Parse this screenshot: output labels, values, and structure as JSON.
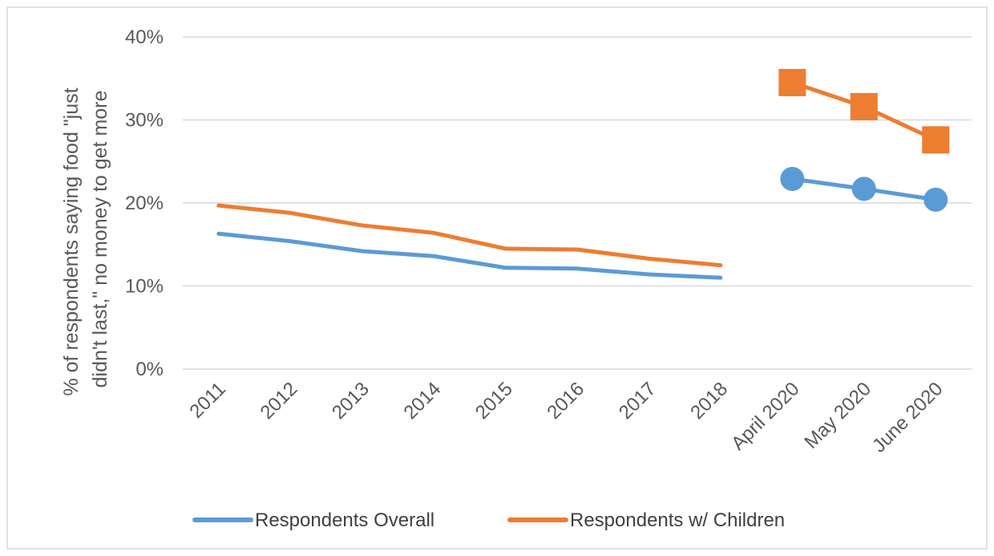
{
  "chart_data": {
    "type": "line",
    "title": "",
    "xlabel": "",
    "ylabel": "% of respondents saying food \"just didn't last,\" no money to get more",
    "ylabel_lines": [
      "% of respondents saying food \"just",
      "didn't last,\" no money to get more"
    ],
    "categories": [
      "2011",
      "2012",
      "2013",
      "2014",
      "2015",
      "2016",
      "2017",
      "2018",
      "April 2020",
      "May 2020",
      "June 2020"
    ],
    "ylim": [
      0,
      40
    ],
    "y_ticks": [
      0,
      10,
      20,
      30,
      40
    ],
    "y_tick_labels": [
      "0%",
      "10%",
      "20%",
      "30%",
      "40%"
    ],
    "grid": true,
    "legend_position": "bottom",
    "series": [
      {
        "name": "Respondents Overall",
        "color": "#5b9bd5",
        "marker": "circle",
        "values": [
          16.3,
          15.4,
          14.2,
          13.6,
          12.2,
          12.1,
          11.4,
          11.0,
          22.9,
          21.7,
          20.4
        ]
      },
      {
        "name": "Respondents w/ Children",
        "color": "#ed7d31",
        "marker": "square",
        "values": [
          19.7,
          18.8,
          17.3,
          16.4,
          14.5,
          14.4,
          13.3,
          12.5,
          34.5,
          31.6,
          27.6
        ]
      }
    ],
    "segments": [
      [
        0,
        7
      ],
      [
        8,
        10
      ]
    ],
    "line_only_segment": 0,
    "marker_segment": 1
  }
}
